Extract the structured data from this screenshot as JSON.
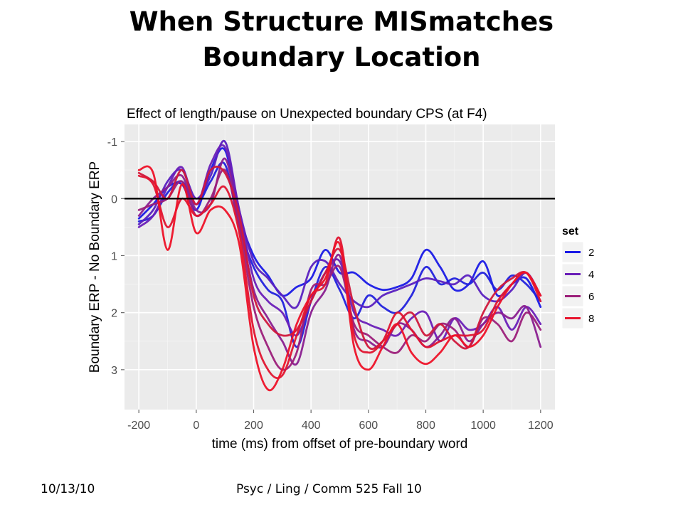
{
  "slide": {
    "title_line1": "When Structure MISmatches",
    "title_line2": "Boundary Location",
    "footer_date": "10/13/10",
    "footer_course": "Psyc / Ling / Comm 525 Fall 10"
  },
  "chart_data": {
    "type": "line",
    "title": "Effect of length/pause on Unexpected boundary CPS (at F4)",
    "xlabel": "time (ms) from offset of pre-boundary word",
    "ylabel": "Boundary ERP - No Boundary ERP",
    "xlim": [
      -250,
      1250
    ],
    "ylim": [
      -1.3,
      3.7
    ],
    "y_reversed": true,
    "x_ticks": [
      -200,
      0,
      200,
      400,
      600,
      800,
      1000,
      1200
    ],
    "x_tick_labels": [
      "-200",
      "0",
      "200",
      "400",
      "600",
      "800",
      "1000",
      "1200"
    ],
    "y_ticks": [
      -1,
      0,
      1,
      2,
      3
    ],
    "y_tick_labels": [
      "-1",
      "0",
      "1",
      "2",
      "3"
    ],
    "grid": true,
    "hline": 0,
    "background": "#ebebeb",
    "legend": {
      "title": "set",
      "position": "right",
      "entries": [
        {
          "label": "2",
          "color": "#1a1ae6"
        },
        {
          "label": "4",
          "color": "#6a1fb8"
        },
        {
          "label": "6",
          "color": "#9c1f7a"
        },
        {
          "label": "8",
          "color": "#e8152e"
        }
      ]
    },
    "x": [
      -200,
      -150,
      -100,
      -50,
      0,
      50,
      100,
      150,
      200,
      250,
      300,
      350,
      400,
      450,
      500,
      550,
      600,
      650,
      700,
      750,
      800,
      850,
      900,
      950,
      1000,
      1050,
      1100,
      1150,
      1200
    ],
    "series": [
      {
        "set": "2",
        "color": "#1a1ae6",
        "values": [
          0.35,
          0.1,
          -0.2,
          -0.25,
          0.2,
          -0.5,
          -0.85,
          0.3,
          1.0,
          1.35,
          1.7,
          1.55,
          1.4,
          0.9,
          1.3,
          1.3,
          1.5,
          1.6,
          1.55,
          1.4,
          0.9,
          1.2,
          1.6,
          1.5,
          1.1,
          1.7,
          1.5,
          1.4,
          1.9
        ]
      },
      {
        "set": "2",
        "color": "#2222dd",
        "values": [
          0.4,
          0.3,
          -0.1,
          -0.3,
          0.1,
          -0.3,
          -0.6,
          0.5,
          1.2,
          1.6,
          1.8,
          2.6,
          1.8,
          1.2,
          1.6,
          2.1,
          1.7,
          1.9,
          2.0,
          1.7,
          1.2,
          1.5,
          1.4,
          1.5,
          1.3,
          1.6,
          1.35,
          1.5,
          1.8
        ]
      },
      {
        "set": "4",
        "color": "#5a20c0",
        "values": [
          0.45,
          0.2,
          -0.3,
          -0.5,
          0.0,
          -0.4,
          -1.0,
          0.2,
          1.1,
          1.4,
          1.7,
          1.9,
          1.2,
          1.1,
          1.5,
          1.8,
          1.9,
          1.7,
          1.6,
          1.5,
          1.4,
          1.45,
          1.5,
          1.35,
          1.7,
          1.8,
          1.6,
          1.3,
          1.7
        ]
      },
      {
        "set": "4",
        "color": "#6a1fb8",
        "values": [
          0.5,
          0.3,
          -0.2,
          -0.55,
          0.1,
          -0.6,
          -0.9,
          0.2,
          1.4,
          1.8,
          2.0,
          2.4,
          1.8,
          1.3,
          1.1,
          2.0,
          2.2,
          2.3,
          2.4,
          2.1,
          2.0,
          2.5,
          2.1,
          2.3,
          2.2,
          1.9,
          2.3,
          1.9,
          2.2
        ]
      },
      {
        "set": "6",
        "color": "#8a1f90",
        "values": [
          0.3,
          0.0,
          -0.2,
          -0.4,
          0.2,
          0.1,
          -0.7,
          0.4,
          1.6,
          2.1,
          2.5,
          2.9,
          2.0,
          1.6,
          1.0,
          2.3,
          2.5,
          2.6,
          2.2,
          2.3,
          2.6,
          2.4,
          2.1,
          2.5,
          2.2,
          2.0,
          2.1,
          1.9,
          2.6
        ]
      },
      {
        "set": "6",
        "color": "#9c1f7a",
        "values": [
          0.2,
          0.1,
          0.0,
          -0.3,
          0.3,
          0.0,
          -0.5,
          0.5,
          1.9,
          2.6,
          3.0,
          2.7,
          1.6,
          1.5,
          1.2,
          2.2,
          2.4,
          2.6,
          2.7,
          2.4,
          2.5,
          2.2,
          2.3,
          2.6,
          2.1,
          2.2,
          2.5,
          2.0,
          2.3
        ]
      },
      {
        "set": "8",
        "color": "#d0183c",
        "values": [
          -0.45,
          -0.3,
          0.0,
          -0.5,
          0.1,
          -0.5,
          -0.45,
          0.3,
          1.7,
          2.2,
          2.4,
          2.3,
          1.8,
          1.3,
          0.9,
          1.9,
          2.6,
          2.5,
          2.2,
          2.0,
          2.4,
          2.2,
          2.5,
          2.6,
          2.0,
          1.6,
          1.4,
          1.3,
          1.7
        ]
      },
      {
        "set": "8",
        "color": "#e01530",
        "values": [
          -0.4,
          -0.25,
          0.5,
          0.0,
          0.3,
          0.1,
          -0.2,
          0.6,
          2.3,
          3.0,
          3.1,
          2.4,
          1.7,
          1.5,
          0.7,
          2.4,
          2.7,
          2.5,
          2.0,
          2.3,
          2.6,
          2.5,
          2.4,
          2.4,
          2.3,
          1.8,
          1.5,
          1.3,
          1.8
        ]
      },
      {
        "set": "8",
        "color": "#ee1228",
        "values": [
          -0.5,
          -0.45,
          0.9,
          -0.25,
          0.6,
          0.2,
          0.2,
          0.8,
          2.6,
          3.35,
          3.0,
          2.2,
          1.7,
          1.4,
          0.8,
          2.6,
          3.0,
          2.6,
          2.2,
          2.7,
          2.9,
          2.7,
          2.4,
          2.6,
          2.4,
          1.9,
          1.5,
          1.3,
          1.7
        ]
      }
    ]
  }
}
